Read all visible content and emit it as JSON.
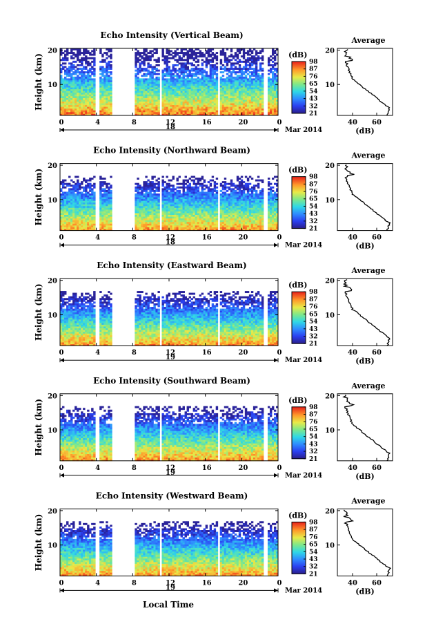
{
  "chart_data": [
    {
      "type": "heatmap",
      "title": "Echo Intensity (Vertical Beam)",
      "ylabel": "Height (km)",
      "x_ticks": [
        "0",
        "4",
        "8",
        "12",
        "16",
        "20",
        "0"
      ],
      "y_ticks": [
        "20",
        "10"
      ],
      "date_label": "18",
      "month_label": "Mar 2014",
      "colorbar_unit": "(dB)",
      "colorbar_ticks": [
        "98",
        "87",
        "76",
        "65",
        "54",
        "43",
        "32",
        "21"
      ],
      "average": {
        "title": "Average",
        "xlabel": "(dB)",
        "x_ticks": [
          "40",
          "60"
        ],
        "y_ticks": [
          "20",
          "10"
        ]
      }
    },
    {
      "type": "heatmap",
      "title": "Echo Intensity (Northward Beam)",
      "ylabel": "Height (km)",
      "x_ticks": [
        "0",
        "4",
        "8",
        "12",
        "16",
        "20",
        "0"
      ],
      "y_ticks": [
        "20",
        "10"
      ],
      "date_label": "18",
      "month_label": "Mar 2014",
      "colorbar_unit": "(dB)",
      "colorbar_ticks": [
        "98",
        "87",
        "76",
        "65",
        "54",
        "43",
        "32",
        "21"
      ],
      "average": {
        "title": "Average",
        "xlabel": "(dB)",
        "x_ticks": [
          "40",
          "60"
        ],
        "y_ticks": [
          "20",
          "10"
        ]
      }
    },
    {
      "type": "heatmap",
      "title": "Echo Intensity (Eastward Beam)",
      "ylabel": "Height (km)",
      "x_ticks": [
        "0",
        "4",
        "8",
        "12",
        "16",
        "20",
        "0"
      ],
      "y_ticks": [
        "20",
        "10"
      ],
      "date_label": "19",
      "month_label": "Mar 2014",
      "colorbar_unit": "(dB)",
      "colorbar_ticks": [
        "98",
        "87",
        "76",
        "65",
        "54",
        "43",
        "32",
        "21"
      ],
      "average": {
        "title": "Average",
        "xlabel": "(dB)",
        "x_ticks": [
          "40",
          "60"
        ],
        "y_ticks": [
          "20",
          "10"
        ]
      }
    },
    {
      "type": "heatmap",
      "title": "Echo Intensity (Southward Beam)",
      "ylabel": "Height (km)",
      "x_ticks": [
        "0",
        "4",
        "8",
        "12",
        "16",
        "20",
        "0"
      ],
      "y_ticks": [
        "20",
        "10"
      ],
      "date_label": "19",
      "month_label": "Mar 2014",
      "colorbar_unit": "(dB)",
      "colorbar_ticks": [
        "98",
        "87",
        "76",
        "65",
        "54",
        "43",
        "32",
        "21"
      ],
      "average": {
        "title": "Average",
        "xlabel": "(dB)",
        "x_ticks": [
          "40",
          "60"
        ],
        "y_ticks": [
          "20",
          "10"
        ]
      }
    },
    {
      "type": "heatmap",
      "title": "Echo Intensity (Westward Beam)",
      "ylabel": "Height (km)",
      "x_ticks": [
        "0",
        "4",
        "8",
        "12",
        "16",
        "20",
        "0"
      ],
      "y_ticks": [
        "20",
        "10"
      ],
      "date_label": "19",
      "month_label": "Mar 2014",
      "colorbar_unit": "(dB)",
      "colorbar_ticks": [
        "98",
        "87",
        "76",
        "65",
        "54",
        "43",
        "32",
        "21"
      ],
      "average": {
        "title": "Average",
        "xlabel": "(dB)",
        "x_ticks": [
          "40",
          "60"
        ],
        "y_ticks": [
          "20",
          "10"
        ]
      }
    }
  ],
  "xlabel": "Local Time"
}
